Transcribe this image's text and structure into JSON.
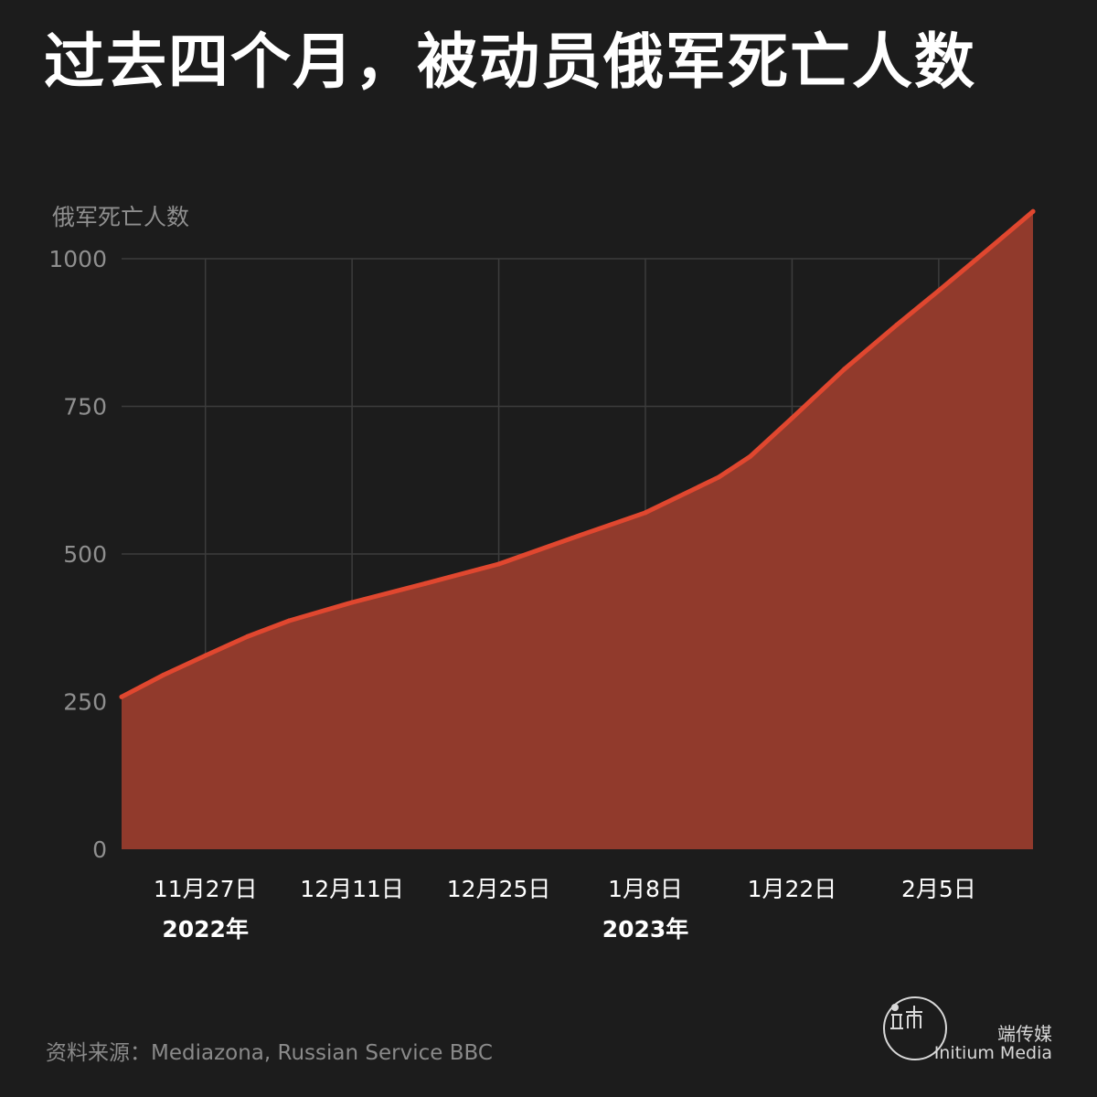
{
  "page": {
    "title": "过去四个月，被动员俄军死亡人数",
    "source": "资料来源：Mediazona, Russian Service BBC",
    "brand": {
      "name_zh": "端传媒",
      "name_en": "Initium Media"
    }
  },
  "colors": {
    "background": "#1c1c1c",
    "line": "#e0472f",
    "area": "#913a2c",
    "grid": "#3c3c3c"
  },
  "chart_data": {
    "type": "area",
    "title": "过去四个月，被动员俄军死亡人数",
    "ylabel": "俄军死亡人数",
    "xlabel": "",
    "ylim": [
      0,
      1000
    ],
    "yticks": [
      0,
      250,
      500,
      750,
      1000
    ],
    "xlim": [
      "2022-11-19",
      "2023-02-14"
    ],
    "xticks": [
      {
        "date": "2022-11-27",
        "label": "11月27日",
        "year": "2022年"
      },
      {
        "date": "2022-12-11",
        "label": "12月11日",
        "year": ""
      },
      {
        "date": "2022-12-25",
        "label": "12月25日",
        "year": ""
      },
      {
        "date": "2023-01-08",
        "label": "1月8日",
        "year": "2023年"
      },
      {
        "date": "2023-01-22",
        "label": "1月22日",
        "year": ""
      },
      {
        "date": "2023-02-05",
        "label": "2月5日",
        "year": ""
      }
    ],
    "grid": true,
    "legend": false,
    "series": [
      {
        "points": [
          {
            "date": "2022-11-19",
            "value": 258
          },
          {
            "date": "2022-11-23",
            "value": 295
          },
          {
            "date": "2022-11-27",
            "value": 328
          },
          {
            "date": "2022-12-01",
            "value": 360
          },
          {
            "date": "2022-12-05",
            "value": 387
          },
          {
            "date": "2022-12-11",
            "value": 418
          },
          {
            "date": "2022-12-18",
            "value": 450
          },
          {
            "date": "2022-12-25",
            "value": 483
          },
          {
            "date": "2023-01-01",
            "value": 527
          },
          {
            "date": "2023-01-08",
            "value": 570
          },
          {
            "date": "2023-01-15",
            "value": 630
          },
          {
            "date": "2023-01-18",
            "value": 665
          },
          {
            "date": "2023-01-22",
            "value": 730
          },
          {
            "date": "2023-01-27",
            "value": 813
          },
          {
            "date": "2023-02-01",
            "value": 888
          },
          {
            "date": "2023-02-05",
            "value": 946
          },
          {
            "date": "2023-02-10",
            "value": 1020
          },
          {
            "date": "2023-02-14",
            "value": 1080
          }
        ]
      }
    ]
  }
}
